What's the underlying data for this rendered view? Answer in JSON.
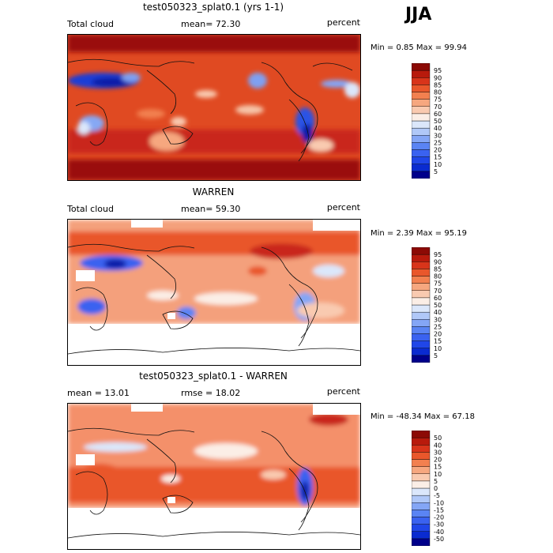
{
  "season": "JJA",
  "panels": [
    {
      "title": "test050323_splat0.1 (yrs 1-1)",
      "left_label": "Total cloud",
      "mid_label": "mean=  72.30",
      "right_label": "percent",
      "minmax": "Min =   0.85 Max =  99.94"
    },
    {
      "title": "WARREN",
      "left_label": "Total cloud",
      "mid_label": "mean=  59.30",
      "right_label": "percent",
      "minmax": "Min =   2.39 Max =  95.19"
    },
    {
      "title": "test050323_splat0.1 - WARREN",
      "left_label": "mean =  13.01",
      "mid_label": "rmse =  18.02",
      "right_label": "percent",
      "minmax": "Min = -48.34 Max =  67.18"
    }
  ],
  "colorbars": {
    "cloud": {
      "levels": [
        "5",
        "10",
        "15",
        "20",
        "25",
        "30",
        "40",
        "50",
        "60",
        "70",
        "75",
        "80",
        "85",
        "90",
        "95"
      ],
      "colors": [
        "#00008b",
        "#0a2bd0",
        "#2046e8",
        "#3a62f0",
        "#5a84f4",
        "#84a6f6",
        "#b0c8f8",
        "#dbe7fb",
        "#fbeee6",
        "#f9cab0",
        "#f6a77f",
        "#f2804f",
        "#e9572b",
        "#d8341a",
        "#b81a0c",
        "#8c0a05"
      ]
    },
    "diff": {
      "levels": [
        "-50",
        "-40",
        "-30",
        "-20",
        "-15",
        "-10",
        "-5",
        "0",
        "5",
        "10",
        "15",
        "20",
        "30",
        "40",
        "50"
      ],
      "colors": [
        "#00008b",
        "#0a2bd0",
        "#2046e8",
        "#3a62f0",
        "#5a84f4",
        "#84a6f6",
        "#b0c8f8",
        "#dbe7fb",
        "#fbeee6",
        "#f9cab0",
        "#f6a77f",
        "#f2804f",
        "#e9572b",
        "#d8341a",
        "#b81a0c",
        "#8c0a05"
      ]
    }
  },
  "chart_data": [
    {
      "type": "heatmap",
      "title": "test050323_splat0.1 (yrs 1-1)",
      "variable": "Total cloud",
      "units": "percent",
      "mean": 72.3,
      "min": 0.85,
      "max": 99.94,
      "contour_levels": [
        5,
        10,
        15,
        20,
        25,
        30,
        40,
        50,
        60,
        70,
        75,
        80,
        85,
        90,
        95
      ]
    },
    {
      "type": "heatmap",
      "title": "WARREN",
      "variable": "Total cloud",
      "units": "percent",
      "mean": 59.3,
      "min": 2.39,
      "max": 95.19,
      "contour_levels": [
        5,
        10,
        15,
        20,
        25,
        30,
        40,
        50,
        60,
        70,
        75,
        80,
        85,
        90,
        95
      ]
    },
    {
      "type": "heatmap",
      "title": "test050323_splat0.1 - WARREN",
      "units": "percent",
      "mean": 13.01,
      "rmse": 18.02,
      "min": -48.34,
      "max": 67.18,
      "contour_levels": [
        -50,
        -40,
        -30,
        -20,
        -15,
        -10,
        -5,
        0,
        5,
        10,
        15,
        20,
        30,
        40,
        50
      ]
    }
  ]
}
